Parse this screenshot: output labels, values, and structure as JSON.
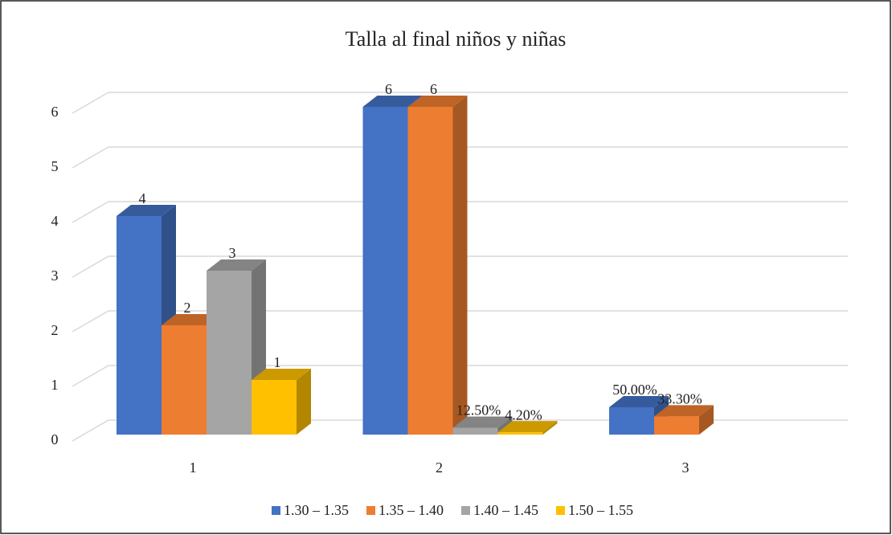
{
  "chart_data": {
    "type": "bar3d",
    "title": "Talla al final niños y niñas",
    "categories": [
      "1",
      "2",
      "3"
    ],
    "series": [
      {
        "name": "1.30 – 1.35",
        "color": "#4472c4",
        "values": [
          4,
          6,
          0.5
        ],
        "value_labels": [
          "4",
          "6",
          "50.00%"
        ]
      },
      {
        "name": "1.35 – 1.40",
        "color": "#ed7d31",
        "values": [
          2,
          6,
          0.333
        ],
        "value_labels": [
          "2",
          "6",
          "33.30%"
        ]
      },
      {
        "name": "1.40 – 1.45",
        "color": "#a5a5a5",
        "values": [
          3,
          0.125,
          null
        ],
        "value_labels": [
          "3",
          "12.50%",
          null
        ]
      },
      {
        "name": "1.50 – 1.55",
        "color": "#ffc000",
        "values": [
          1,
          0.042,
          null
        ],
        "value_labels": [
          "1",
          "4.20%",
          null
        ]
      }
    ],
    "ylim": [
      0,
      6
    ],
    "yticks": [
      0,
      1,
      2,
      3,
      4,
      5,
      6
    ],
    "grid": true,
    "legend": "bottom"
  }
}
